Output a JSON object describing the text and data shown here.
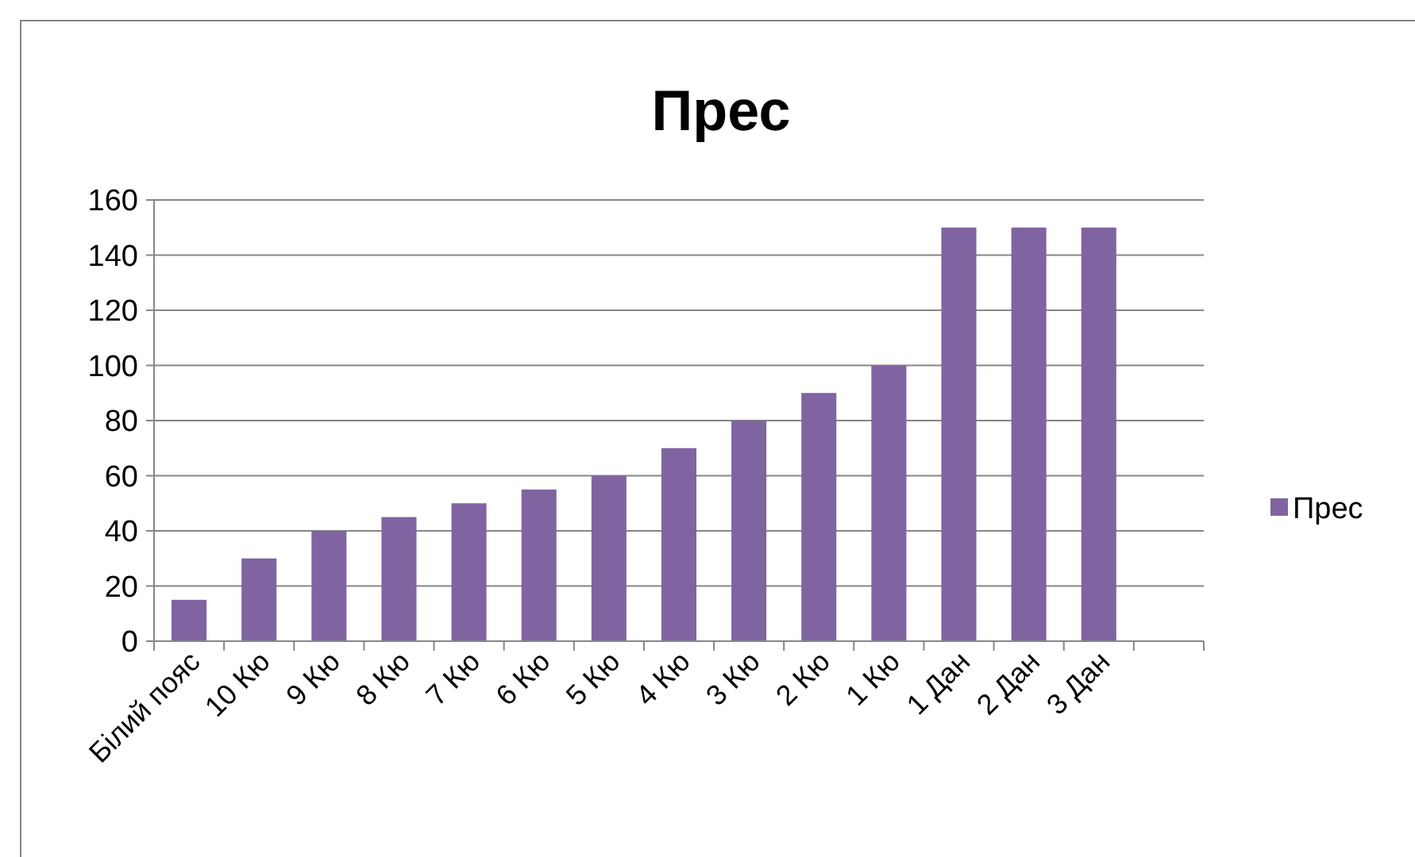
{
  "chart_data": {
    "type": "bar",
    "title": "Прес",
    "categories": [
      "Білий пояс",
      "10 Кю",
      "9 Кю",
      "8 Кю",
      "7 Кю",
      "6 Кю",
      "5 Кю",
      "4 Кю",
      "3 Кю",
      "2 Кю",
      "1 Кю",
      "1 Дан",
      "2 Дан",
      "3 Дан",
      null
    ],
    "series": [
      {
        "name": "Прес",
        "color": "#8064a2",
        "values": [
          15,
          30,
          40,
          45,
          50,
          55,
          60,
          70,
          80,
          90,
          100,
          150,
          150,
          150,
          null
        ]
      }
    ],
    "ylim": [
      0,
      160
    ],
    "yticks": [
      0,
      20,
      40,
      60,
      80,
      100,
      120,
      140,
      160
    ],
    "grid": "y",
    "legend": "right"
  }
}
